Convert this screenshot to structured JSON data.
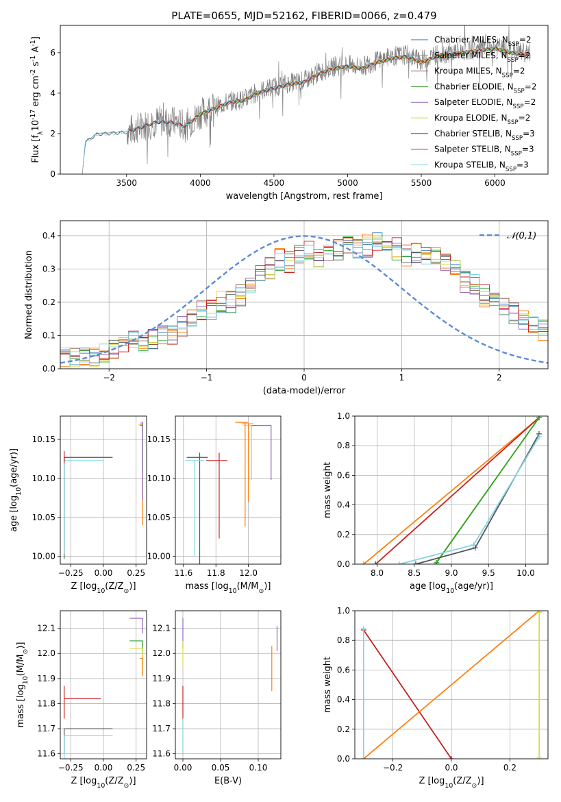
{
  "figure_title": "PLATE=0655, MJD=52162, FIBERID=0066, z=0.479",
  "legend_entries": [
    {
      "name": "Chabrier MILES, N$_{SSP}$=2",
      "color": "#1f77b4"
    },
    {
      "name": "Salpeter MILES, N$_{SSP}$=2",
      "color": "#ff7f0e"
    },
    {
      "name": "Kroupa MILES, N$_{SSP}$=2",
      "color": "#8c564b"
    },
    {
      "name": "Chabrier ELODIE, N$_{SSP}$=2",
      "color": "#2ca02c"
    },
    {
      "name": "Salpeter ELODIE, N$_{SSP}$=2",
      "color": "#9467bd"
    },
    {
      "name": "Kroupa ELODIE, N$_{SSP}$=2",
      "color": "#dbdb3d"
    },
    {
      "name": "Chabrier STELIB, N$_{SSP}$=3",
      "color": "#555555"
    },
    {
      "name": "Salpeter STELIB, N$_{SSP}$=3",
      "color": "#c81e1e"
    },
    {
      "name": "Kroupa STELIB, N$_{SSP}$=3",
      "color": "#7fd6e6"
    }
  ],
  "panel_spectrum": {
    "xlabel": "wavelength [Angstrom, rest frame]",
    "ylabel": "Flux [f$_\\lambda$10$^{-17}$ erg cm$^{-2}$ s$^{-1}$ A$^{-1}$]",
    "xticks": [
      "3500",
      "4000",
      "4500",
      "5000",
      "5500",
      "6000"
    ],
    "yticks": [
      "0",
      "2",
      "4",
      "6"
    ]
  },
  "panel_hist": {
    "xlabel": "(data-model)/error",
    "ylabel": "Normed distribution",
    "xticks": [
      "−2",
      "−1",
      "0",
      "1",
      "2"
    ],
    "yticks": [
      "0.0",
      "0.1",
      "0.2",
      "0.3",
      "0.4"
    ],
    "legend": "$\\mathcal{N}(0,1)$"
  },
  "panel_age_Z": {
    "xlabel": "Z [log$_{10}$(Z/Z$_\\odot$)]",
    "ylabel": "age  [log$_{10}$(age/yr)]",
    "xticks": [
      "−0.25",
      "0.00",
      "0.25"
    ],
    "yticks": [
      "10.00",
      "10.05",
      "10.10",
      "10.15"
    ]
  },
  "panel_age_mass": {
    "xlabel": "mass [log$_{10}$(M/M$_\\odot$)]",
    "xticks": [
      "11.6",
      "11.8",
      "12.0"
    ],
    "yticks": [
      "10.00",
      "10.05",
      "10.10",
      "10.15"
    ]
  },
  "panel_mw_age": {
    "xlabel": "age  [log$_{10}$(age/yr)]",
    "ylabel": "mass weight",
    "xticks": [
      "8.0",
      "8.5",
      "9.0",
      "9.5",
      "10.0"
    ],
    "yticks": [
      "0.0",
      "0.2",
      "0.4",
      "0.6",
      "0.8",
      "1.0"
    ]
  },
  "panel_mass_Z": {
    "xlabel": "Z [log$_{10}$(Z/Z$_\\odot$)]",
    "ylabel": "mass [log$_{10}$(M/M$_\\odot$)]",
    "xticks": [
      "−0.25",
      "0.00",
      "0.25"
    ],
    "yticks": [
      "11.6",
      "11.7",
      "11.8",
      "11.9",
      "12.0",
      "12.1"
    ]
  },
  "panel_mass_ebv": {
    "xlabel": "E(B-V)",
    "xticks": [
      "0.00",
      "0.05",
      "0.10"
    ],
    "yticks": [
      "11.6",
      "11.7",
      "11.8",
      "11.9",
      "12.0",
      "12.1"
    ]
  },
  "panel_mw_Z": {
    "xlabel": "Z [log$_{10}$(Z/Z$_\\odot$)]",
    "ylabel": "mass weight",
    "xticks": [
      "−0.2",
      "0.0",
      "0.2"
    ],
    "yticks": [
      "0.0",
      "0.2",
      "0.4",
      "0.6",
      "0.8",
      "1.0"
    ]
  },
  "chart_data": [
    {
      "type": "line",
      "title": "PLATE=0655, MJD=52162, FIBERID=0066, z=0.479",
      "xlabel": "wavelength [Angstrom, rest frame]",
      "ylabel": "Flux [f$_\\lambda$10$^{-17}$ erg cm$^{-2}$ s$^{-1}$ A$^{-1}$]",
      "xlim": [
        3050,
        6360
      ],
      "ylim": [
        0,
        7.35
      ],
      "data_color": "#808080",
      "data_envelope": {
        "x": [
          3200,
          3210,
          3220,
          3300,
          3400,
          3500,
          3600,
          3700,
          3800,
          3900,
          4000,
          4100,
          4200,
          4300,
          4400,
          4500,
          4600,
          4700,
          4800,
          4900,
          5000,
          5100,
          5200,
          5300,
          5400,
          5500,
          5600,
          5700,
          5800,
          5900,
          6000,
          6100,
          6200,
          6240
        ],
        "y": [
          0,
          0.9,
          1.6,
          2.0,
          2.05,
          2.1,
          2.35,
          2.6,
          2.6,
          2.4,
          3.0,
          3.3,
          3.6,
          3.7,
          4.1,
          4.3,
          4.5,
          4.6,
          5.0,
          5.3,
          5.4,
          5.3,
          5.6,
          5.8,
          5.9,
          5.6,
          5.9,
          6.0,
          6.1,
          6.2,
          6.3,
          6.1,
          6.0,
          6.0
        ]
      },
      "legend": "top-right",
      "grid": false
    },
    {
      "type": "bar",
      "title": "",
      "xlabel": "(data-model)/error",
      "ylabel": "Normed distribution",
      "xlim": [
        -2.5,
        2.5
      ],
      "ylim": [
        0,
        0.445
      ],
      "bin_edges_start": -2.5,
      "bin_width": 0.1,
      "reference_curve": {
        "name": "$\\mathcal{N}(0,1)$",
        "mean": 0,
        "sigma": 1,
        "color": "#5b8ad6"
      },
      "envelope": [
        0.03,
        0.035,
        0.04,
        0.04,
        0.05,
        0.06,
        0.08,
        0.085,
        0.085,
        0.09,
        0.1,
        0.1,
        0.13,
        0.15,
        0.17,
        0.18,
        0.2,
        0.2,
        0.22,
        0.26,
        0.28,
        0.3,
        0.33,
        0.32,
        0.34,
        0.35,
        0.34,
        0.35,
        0.36,
        0.37,
        0.36,
        0.37,
        0.38,
        0.37,
        0.36,
        0.34,
        0.35,
        0.33,
        0.34,
        0.32,
        0.3,
        0.26,
        0.25,
        0.22,
        0.2,
        0.18,
        0.17,
        0.15,
        0.14,
        0.12
      ],
      "grid": true,
      "legend": "top-right"
    },
    {
      "type": "scatter",
      "xlabel": "Z [log$_{10}$(Z/Z$_\\odot$)]",
      "ylabel": "age  [log$_{10}$(age/yr)]",
      "xlim": [
        -0.33,
        0.33
      ],
      "ylim": [
        9.99,
        10.18
      ],
      "points": [
        {
          "series": "Chabrier STELIB",
          "x": -0.3,
          "y": 10.127,
          "xerr": [
            0,
            0.37
          ],
          "yerr": [
            0.13,
            0
          ]
        },
        {
          "series": "Kroupa STELIB",
          "x": -0.3,
          "y": 10.123,
          "xerr": [
            0,
            0.3
          ],
          "yerr": [
            0.12,
            0
          ]
        },
        {
          "series": "Salpeter STELIB",
          "x": -0.3,
          "y": 10.13,
          "xerr": [
            0,
            0
          ],
          "yerr": [
            0.01,
            0.005
          ]
        },
        {
          "series": "Salpeter MILES",
          "x": 0.3,
          "y": 10.17,
          "xerr": [
            0.02,
            0
          ],
          "yerr": [
            0.13,
            0
          ]
        },
        {
          "series": "Kroupa ELODIE",
          "x": 0.3,
          "y": 10.169,
          "xerr": [
            0.03,
            0
          ],
          "yerr": [
            0.07,
            0
          ]
        },
        {
          "series": "Chabrier ELODIE",
          "x": 0.3,
          "y": 10.168,
          "xerr": [
            0.02,
            0
          ],
          "yerr": [
            0.06,
            0
          ]
        },
        {
          "series": "Salpeter ELODIE",
          "x": 0.3,
          "y": 10.172,
          "xerr": [
            0.01,
            0
          ],
          "yerr": [
            0.1,
            0
          ]
        }
      ],
      "grid": true
    },
    {
      "type": "scatter",
      "xlabel": "mass [log$_{10}$(M/M$_\\odot$)]",
      "ylabel": "",
      "xlim": [
        11.55,
        12.2
      ],
      "ylim": [
        9.99,
        10.18
      ],
      "points": [
        {
          "series": "Chabrier STELIB",
          "x": 11.7,
          "y": 10.127,
          "xerr": [
            0.08,
            0.05
          ],
          "yerr": [
            0.137,
            0.006
          ]
        },
        {
          "series": "Kroupa STELIB",
          "x": 11.67,
          "y": 10.123,
          "xerr": [
            0.06,
            0.06
          ],
          "yerr": [
            0.123,
            0
          ]
        },
        {
          "series": "Salpeter STELIB",
          "x": 11.82,
          "y": 10.123,
          "xerr": [
            0.08,
            0.05
          ],
          "yerr": [
            0.1,
            0.01
          ]
        },
        {
          "series": "Salpeter MILES",
          "x": 11.98,
          "y": 10.172,
          "xerr": [
            0.06,
            0.02
          ],
          "yerr": [
            0.134,
            0
          ]
        },
        {
          "series": "Kroupa ELODIE",
          "x": 12.02,
          "y": 10.168,
          "xerr": [
            0.05,
            0.06
          ],
          "yerr": [
            0.07,
            0
          ]
        },
        {
          "series": "Salpeter ELODIE",
          "x": 12.14,
          "y": 10.168,
          "xerr": [
            0.12,
            0
          ],
          "yerr": [
            0.07,
            0
          ]
        },
        {
          "series": "Salpeter MILES",
          "x": 12.0,
          "y": 10.17,
          "xerr": [
            0.04,
            0.03
          ],
          "yerr": [
            0.1,
            0
          ]
        }
      ],
      "grid": true
    },
    {
      "type": "line",
      "xlabel": "age  [log$_{10}$(age/yr)]",
      "ylabel": "mass weight",
      "xlim": [
        7.7,
        10.3
      ],
      "ylim": [
        0,
        1
      ],
      "series": [
        {
          "name": "Salpeter MILES",
          "x": [
            7.82,
            10.18
          ],
          "y": [
            0.0,
            0.99
          ]
        },
        {
          "name": "Salpeter STELIB",
          "x": [
            7.98,
            10.18
          ],
          "y": [
            0.0,
            0.99
          ]
        },
        {
          "name": "Kroupa ELODIE",
          "x": [
            8.78,
            10.18
          ],
          "y": [
            0.0,
            0.99
          ]
        },
        {
          "name": "Chabrier ELODIE",
          "x": [
            8.8,
            10.18
          ],
          "y": [
            0.01,
            0.99
          ]
        },
        {
          "name": "Chabrier STELIB",
          "x": [
            8.52,
            9.32,
            10.18
          ],
          "y": [
            0.0,
            0.11,
            0.88
          ]
        },
        {
          "name": "Kroupa STELIB",
          "x": [
            8.3,
            9.3,
            10.18
          ],
          "y": [
            0.0,
            0.13,
            0.86
          ]
        }
      ],
      "grid": true
    },
    {
      "type": "scatter",
      "xlabel": "Z [log$_{10}$(Z/Z$_\\odot$)]",
      "ylabel": "mass [log$_{10}$(M/M$_\\odot$)]",
      "xlim": [
        -0.33,
        0.33
      ],
      "ylim": [
        11.58,
        12.17
      ],
      "points": [
        {
          "series": "Salpeter STELIB",
          "x": -0.3,
          "y": 11.82,
          "xerr": [
            0,
            0.28
          ],
          "yerr": [
            0.08,
            0.05
          ]
        },
        {
          "series": "Chabrier STELIB",
          "x": -0.3,
          "y": 11.7,
          "xerr": [
            0,
            0.37
          ],
          "yerr": [
            0.1,
            0
          ]
        },
        {
          "series": "Kroupa STELIB",
          "x": -0.3,
          "y": 11.673,
          "xerr": [
            0,
            0.37
          ],
          "yerr": [
            0.1,
            0
          ]
        },
        {
          "series": "Salpeter ELODIE",
          "x": 0.3,
          "y": 12.14,
          "xerr": [
            0.1,
            0
          ],
          "yerr": [
            0.06,
            0
          ]
        },
        {
          "series": "Chabrier ELODIE",
          "x": 0.3,
          "y": 12.05,
          "xerr": [
            0.1,
            0
          ],
          "yerr": [
            0.1,
            0
          ]
        },
        {
          "series": "Kroupa ELODIE",
          "x": 0.3,
          "y": 12.02,
          "xerr": [
            0.1,
            0
          ],
          "yerr": [
            0.1,
            0
          ]
        },
        {
          "series": "Salpeter MILES",
          "x": 0.3,
          "y": 11.98,
          "xerr": [
            0.02,
            0
          ],
          "yerr": [
            0.07,
            0
          ]
        }
      ],
      "grid": true
    },
    {
      "type": "scatter",
      "xlabel": "E(B-V)",
      "ylabel": "",
      "xlim": [
        -0.01,
        0.13
      ],
      "ylim": [
        11.58,
        12.17
      ],
      "points": [
        {
          "series": "Salpeter STELIB",
          "x": 0.0,
          "y": 11.82,
          "yerr": [
            0.08,
            0.05
          ]
        },
        {
          "series": "Kroupa STELIB",
          "x": 0.0,
          "y": 11.67,
          "yerr": [
            0.07,
            0.07
          ]
        },
        {
          "series": "Salpeter ELODIE",
          "x": 0.0,
          "y": 12.08,
          "yerr": [
            0.06,
            0.06
          ]
        },
        {
          "series": "Kroupa ELODIE",
          "x": 0.0,
          "y": 12.0,
          "yerr": [
            0.05,
            0.05
          ]
        },
        {
          "series": "Salpeter MILES",
          "x": 0.118,
          "y": 11.95,
          "yerr": [
            0.1,
            0.08
          ]
        },
        {
          "series": "Salpeter ELODIE",
          "x": 0.125,
          "y": 12.06,
          "yerr": [
            0.05,
            0.05
          ]
        }
      ],
      "grid": true
    },
    {
      "type": "line",
      "xlabel": "Z [log$_{10}$(Z/Z$_\\odot$)]",
      "ylabel": "mass weight",
      "xlim": [
        -0.33,
        0.33
      ],
      "ylim": [
        0,
        1
      ],
      "series": [
        {
          "name": "Salpeter STELIB",
          "x": [
            -0.3,
            0.0
          ],
          "y": [
            0.87,
            0.0
          ]
        },
        {
          "name": "Salpeter MILES",
          "x": [
            -0.3,
            0.3
          ],
          "y": [
            0.0,
            1.0
          ]
        },
        {
          "name": "Kroupa STELIB",
          "x": [
            -0.3,
            -0.3
          ],
          "y": [
            0.0,
            0.88
          ]
        },
        {
          "name": "Kroupa ELODIE",
          "x": [
            0.3,
            0.3
          ],
          "y": [
            0.01,
            0.99
          ]
        }
      ],
      "grid": true
    }
  ]
}
